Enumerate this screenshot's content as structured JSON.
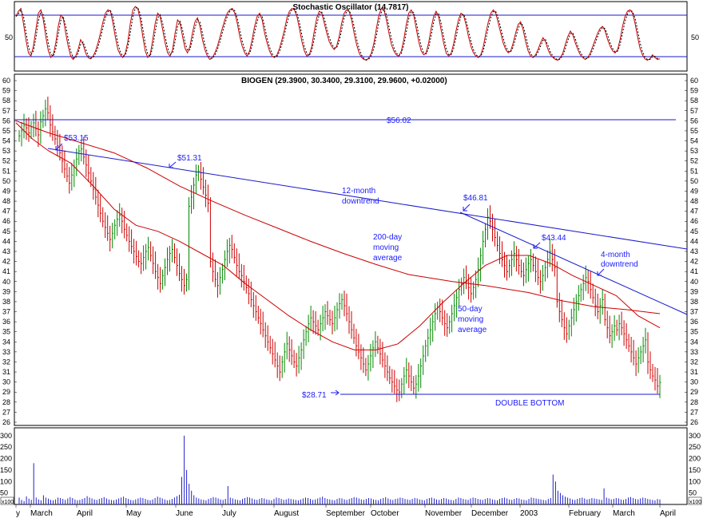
{
  "chart_data": [
    {
      "type": "line",
      "title": "Stochastic Oscillator (14.7817)",
      "reference_lines": [
        80,
        20
      ],
      "tick_labels": [
        "50"
      ],
      "ylim": [
        0,
        100
      ],
      "series": [
        {
          "values": [
            80,
            88,
            92,
            70,
            45,
            25,
            20,
            35,
            60,
            85,
            90,
            75,
            50,
            28,
            18,
            22,
            40,
            65,
            82,
            78,
            55,
            35,
            20,
            15,
            20,
            30,
            45,
            38,
            25,
            18,
            16,
            20,
            28,
            40,
            55,
            72,
            85,
            90,
            88,
            70,
            48,
            30,
            22,
            18,
            25,
            42,
            70,
            90,
            95,
            92,
            75,
            50,
            28,
            18,
            22,
            45,
            70,
            85,
            80,
            60,
            40,
            25,
            20,
            30,
            55,
            75,
            70,
            50,
            32,
            25,
            35,
            55,
            72,
            78,
            65,
            45,
            30,
            20,
            15,
            18,
            25,
            35,
            48,
            62,
            75,
            85,
            90,
            92,
            85,
            70,
            50,
            35,
            25,
            20,
            28,
            45,
            65,
            80,
            85,
            75,
            55,
            40,
            28,
            20,
            18,
            22,
            32,
            45,
            60,
            78,
            88,
            92,
            90,
            80,
            62,
            42,
            28,
            20,
            22,
            35,
            58,
            78,
            88,
            85,
            70,
            55,
            42,
            35,
            30,
            35,
            50,
            70,
            85,
            90,
            88,
            75,
            55,
            38,
            25,
            18,
            15,
            14,
            18,
            25,
            40,
            62,
            82,
            92,
            90,
            75,
            55,
            38,
            28,
            22,
            20,
            28,
            45,
            68,
            85,
            90,
            82,
            62,
            42,
            28,
            22,
            25,
            40,
            62,
            80,
            88,
            80,
            60,
            40,
            25,
            20,
            24,
            38,
            58,
            75,
            85,
            82,
            68,
            50,
            35,
            25,
            20,
            18,
            22,
            35,
            55,
            72,
            85,
            90,
            85,
            70,
            55,
            40,
            30,
            25,
            28,
            40,
            55,
            68,
            72,
            60,
            42,
            28,
            20,
            18,
            22,
            30,
            40,
            48,
            42,
            30,
            22,
            18,
            15,
            14,
            18,
            25,
            38,
            50,
            58,
            52,
            40,
            30,
            22,
            18,
            15,
            18,
            25,
            35,
            45,
            55,
            62,
            65,
            58,
            45,
            35,
            28,
            25,
            30,
            45,
            65,
            80,
            88,
            90,
            85,
            70,
            50,
            32,
            22,
            16,
            14,
            16,
            22,
            18,
            15,
            16
          ]
        }
      ]
    },
    {
      "type": "bar",
      "title": "BIOGEN (29.3900, 30.3400, 29.3100, 29.9600, +0.02000)",
      "ylim": [
        26,
        60
      ],
      "y_ticks": [
        26,
        27,
        28,
        29,
        30,
        31,
        32,
        33,
        34,
        35,
        36,
        37,
        38,
        39,
        40,
        41,
        42,
        43,
        44,
        45,
        46,
        47,
        48,
        49,
        50,
        51,
        52,
        53,
        54,
        55,
        56,
        57,
        58,
        59,
        60
      ],
      "x_labels": [
        "y",
        "March",
        "April",
        "May",
        "June",
        "July",
        "August",
        "September",
        "October",
        "November",
        "December",
        "2003",
        "February",
        "March",
        "April"
      ],
      "closes": [
        54.5,
        55.0,
        55.5,
        55.3,
        54.8,
        55.4,
        55.8,
        55.2,
        54.6,
        55.9,
        56.5,
        57.2,
        56.8,
        55.6,
        54.9,
        54.2,
        53.5,
        52.8,
        52.0,
        51.2,
        50.5,
        49.8,
        50.6,
        51.4,
        52.2,
        53.0,
        53.2,
        52.4,
        51.6,
        50.8,
        50.0,
        49.2,
        48.4,
        47.6,
        46.8,
        46.0,
        45.4,
        44.8,
        44.2,
        44.8,
        45.6,
        46.2,
        46.6,
        46.0,
        45.2,
        44.6,
        44.0,
        43.5,
        43.0,
        42.5,
        42.0,
        41.8,
        42.4,
        43.0,
        43.4,
        42.6,
        41.8,
        41.0,
        40.4,
        39.8,
        40.6,
        41.4,
        42.2,
        42.8,
        43.2,
        42.4,
        41.6,
        40.8,
        40.2,
        39.6,
        40.2,
        47.5,
        48.4,
        49.6,
        50.6,
        51.0,
        50.2,
        49.4,
        48.6,
        47.8,
        42.0,
        41.0,
        40.2,
        39.6,
        40.4,
        41.2,
        42.2,
        43.0,
        43.6,
        43.2,
        42.4,
        41.6,
        41.0,
        40.6,
        40.0,
        39.4,
        38.8,
        38.2,
        37.6,
        37.0,
        36.4,
        35.8,
        35.2,
        34.6,
        34.0,
        33.4,
        32.8,
        32.2,
        31.6,
        31.0,
        32.0,
        33.0,
        33.8,
        33.2,
        32.6,
        32.0,
        31.6,
        32.4,
        33.2,
        34.2,
        35.0,
        35.8,
        36.4,
        36.0,
        35.6,
        35.2,
        35.8,
        36.4,
        37.0,
        36.6,
        36.2,
        35.8,
        36.4,
        37.2,
        37.8,
        38.2,
        37.6,
        36.8,
        36.0,
        35.2,
        34.4,
        33.6,
        33.0,
        32.4,
        31.8,
        31.2,
        31.8,
        32.6,
        33.4,
        34.0,
        33.4,
        32.8,
        32.2,
        31.6,
        31.0,
        30.4,
        30.0,
        29.6,
        29.2,
        29.0,
        29.8,
        30.6,
        31.2,
        30.6,
        30.0,
        29.4,
        29.8,
        30.6,
        31.6,
        32.6,
        33.6,
        34.4,
        35.2,
        36.0,
        36.8,
        37.4,
        37.0,
        36.4,
        35.8,
        35.4,
        36.0,
        36.8,
        37.6,
        38.4,
        39.2,
        39.8,
        40.4,
        40.0,
        39.4,
        38.8,
        39.4,
        40.2,
        41.2,
        42.6,
        44.0,
        45.2,
        46.4,
        46.0,
        45.2,
        44.4,
        43.6,
        42.8,
        42.2,
        41.6,
        41.0,
        41.6,
        42.2,
        42.8,
        42.2,
        41.6,
        41.0,
        40.6,
        41.2,
        41.8,
        42.2,
        41.6,
        41.0,
        40.4,
        40.0,
        40.6,
        41.4,
        42.2,
        43.0,
        42.2,
        41.4,
        38.0,
        37.0,
        36.2,
        35.4,
        34.8,
        35.6,
        36.4,
        37.2,
        38.0,
        38.6,
        39.2,
        39.8,
        40.4,
        40.0,
        39.2,
        38.4,
        37.6,
        37.0,
        37.6,
        38.2,
        36.2,
        35.4,
        34.6,
        35.0,
        35.6,
        35.2,
        35.8,
        35.4,
        34.8,
        34.2,
        33.6,
        33.0,
        32.4,
        31.8,
        32.4,
        33.0,
        33.6,
        34.2,
        32.0,
        31.2,
        30.6,
        30.2,
        29.6,
        29.96
      ],
      "moving_averages": [
        {
          "name": "200-day moving average",
          "points": [
            [
              0,
              56.0
            ],
            [
              30,
              54.8
            ],
            [
              60,
              53.8
            ],
            [
              90,
              52.8
            ],
            [
              120,
              51.3
            ],
            [
              150,
              49.5
            ],
            [
              180,
              48.0
            ],
            [
              210,
              46.6
            ],
            [
              240,
              45.3
            ],
            [
              270,
              44.0
            ],
            [
              300,
              42.8
            ],
            [
              330,
              41.7
            ],
            [
              360,
              40.7
            ],
            [
              400,
              40.0
            ],
            [
              430,
              39.6
            ],
            [
              470,
              38.9
            ],
            [
              500,
              38.1
            ],
            [
              530,
              37.5
            ],
            [
              560,
              37.2
            ],
            [
              590,
              36.8
            ]
          ]
        },
        {
          "name": "50-day moving average",
          "points": [
            [
              0,
              55.8
            ],
            [
              15,
              54.2
            ],
            [
              30,
              53.0
            ],
            [
              50,
              51.8
            ],
            [
              70,
              49.6
            ],
            [
              90,
              47.2
            ],
            [
              110,
              45.6
            ],
            [
              130,
              45.0
            ],
            [
              150,
              44.0
            ],
            [
              170,
              42.8
            ],
            [
              190,
              41.6
            ],
            [
              210,
              39.8
            ],
            [
              230,
              38.2
            ],
            [
              250,
              36.6
            ],
            [
              270,
              35.2
            ],
            [
              290,
              34.0
            ],
            [
              310,
              33.2
            ],
            [
              330,
              33.2
            ],
            [
              350,
              33.8
            ],
            [
              370,
              35.6
            ],
            [
              390,
              37.8
            ],
            [
              410,
              39.8
            ],
            [
              430,
              41.6
            ],
            [
              450,
              42.6
            ],
            [
              470,
              42.6
            ],
            [
              490,
              41.8
            ],
            [
              510,
              40.6
            ],
            [
              530,
              39.6
            ],
            [
              550,
              38.6
            ],
            [
              570,
              36.6
            ],
            [
              590,
              35.4
            ]
          ]
        }
      ],
      "annotations": {
        "high_line": "$56.02",
        "low_line": "$28.71",
        "peak_1": "$53.15",
        "peak_2": "$51.31",
        "peak_3": "$46.81",
        "peak_4": "$43.44",
        "trend_12m": [
          "12-month",
          "downtrend"
        ],
        "trend_4m": [
          "4-month",
          "downtrend"
        ],
        "ma200": [
          "200-day",
          "moving",
          "average"
        ],
        "ma50": [
          "50-day",
          "moving",
          "average"
        ],
        "double_bottom": "DOUBLE BOTTOM"
      },
      "levels": {
        "high": 56.02,
        "low": 28.71,
        "peaks": [
          53.15,
          51.31,
          46.81,
          43.44
        ]
      }
    },
    {
      "type": "bar",
      "title": "",
      "ylim": [
        0,
        320
      ],
      "y_ticks": [
        50,
        100,
        150,
        200,
        250,
        300
      ],
      "unit_label": "x100",
      "values": [
        30,
        20,
        15,
        35,
        25,
        20,
        180,
        30,
        22,
        18,
        40,
        30,
        25,
        20,
        18,
        22,
        30,
        28,
        24,
        20,
        26,
        32,
        28,
        22,
        18,
        20,
        24,
        28,
        36,
        30,
        26,
        22,
        20,
        24,
        28,
        32,
        26,
        22,
        20,
        18,
        22,
        26,
        30,
        34,
        28,
        24,
        20,
        18,
        22,
        26,
        30,
        28,
        24,
        20,
        18,
        22,
        28,
        34,
        30,
        26,
        22,
        18,
        20,
        24,
        30,
        36,
        42,
        120,
        300,
        150,
        90,
        60,
        40,
        30,
        26,
        22,
        20,
        18,
        24,
        28,
        32,
        30,
        26,
        22,
        20,
        24,
        80,
        30,
        26,
        22,
        20,
        18,
        24,
        28,
        32,
        30,
        26,
        22,
        20,
        24,
        28,
        26,
        22,
        20,
        18,
        24,
        30,
        28,
        24,
        20,
        22,
        26,
        24,
        22,
        20,
        18,
        22,
        26,
        30,
        28,
        24,
        20,
        22,
        26,
        30,
        34,
        28,
        24,
        22,
        20,
        18,
        24,
        28,
        26,
        22,
        20,
        24,
        28,
        32,
        30,
        26,
        22,
        20,
        24,
        28,
        26,
        22,
        20,
        18,
        24,
        28,
        32,
        26,
        22,
        20,
        24,
        26,
        30,
        28,
        24,
        22,
        20,
        24,
        28,
        26,
        22,
        20,
        18,
        24,
        28,
        30,
        26,
        22,
        20,
        24,
        28,
        26,
        22,
        20,
        18,
        24,
        30,
        28,
        24,
        22,
        20,
        26,
        30,
        28,
        24,
        22,
        20,
        24,
        28,
        26,
        22,
        20,
        18,
        24,
        28,
        30,
        26,
        22,
        20,
        24,
        28,
        26,
        22,
        20,
        18,
        24,
        30,
        28,
        26,
        24,
        22,
        20,
        18,
        24,
        28,
        130,
        100,
        60,
        50,
        40,
        34,
        30,
        26,
        22,
        20,
        24,
        28,
        30,
        26,
        22,
        24,
        28,
        26,
        24,
        22,
        20,
        70,
        30,
        26,
        22,
        24,
        28,
        26,
        22,
        20,
        24,
        30,
        32,
        28,
        24,
        22,
        26,
        30,
        28,
        24,
        22,
        20,
        18,
        24,
        22
      ]
    }
  ]
}
